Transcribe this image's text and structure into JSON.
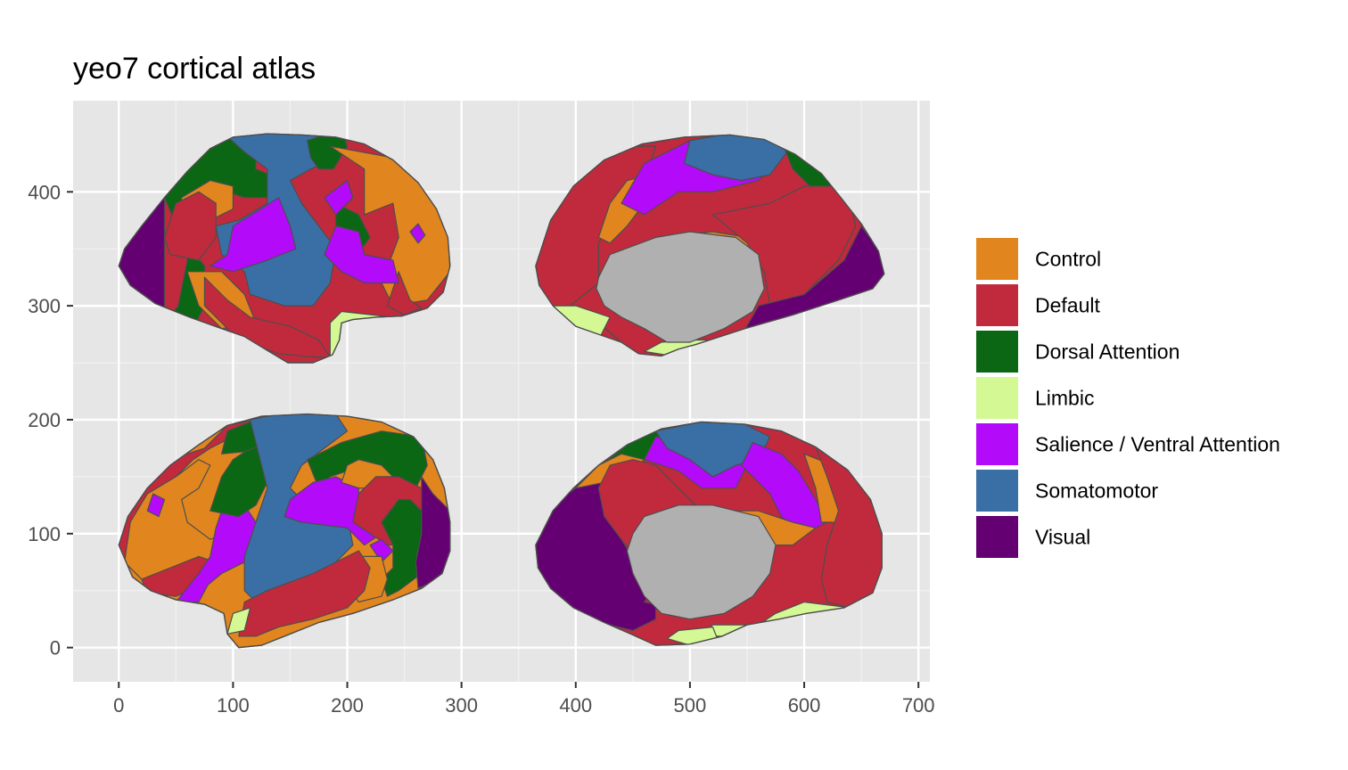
{
  "chart_data": {
    "type": "map",
    "title": "yeo7 cortical atlas",
    "xlabel": "",
    "ylabel": "",
    "xlim": [
      -40,
      710
    ],
    "ylim": [
      -30,
      480
    ],
    "xticks": [
      0,
      100,
      200,
      300,
      400,
      500,
      600,
      700
    ],
    "yticks": [
      0,
      100,
      200,
      300,
      400
    ],
    "grid": true,
    "legend_position": "right",
    "legend": [
      {
        "label": "Control",
        "color": "#E1861E"
      },
      {
        "label": "Default",
        "color": "#C12A3C"
      },
      {
        "label": "Dorsal Attention",
        "color": "#0B6714"
      },
      {
        "label": "Limbic",
        "color": "#D4F894"
      },
      {
        "label": "Salience / Ventral Attention",
        "color": "#B30AFA"
      },
      {
        "label": "Somatomotor",
        "color": "#3A6FA6"
      },
      {
        "label": "Visual",
        "color": "#650072"
      }
    ],
    "medial_wall_color": "#B0B0B0",
    "views": [
      {
        "hemi": "left",
        "side": "lateral",
        "x_range": [
          0,
          290
        ],
        "y_range": [
          250,
          450
        ]
      },
      {
        "hemi": "left",
        "side": "medial",
        "x_range": [
          365,
          670
        ],
        "y_range": [
          255,
          450
        ]
      },
      {
        "hemi": "right",
        "side": "lateral",
        "x_range": [
          0,
          290
        ],
        "y_range": [
          0,
          205
        ]
      },
      {
        "hemi": "right",
        "side": "medial",
        "x_range": [
          365,
          670
        ],
        "y_range": [
          0,
          200
        ]
      }
    ]
  }
}
